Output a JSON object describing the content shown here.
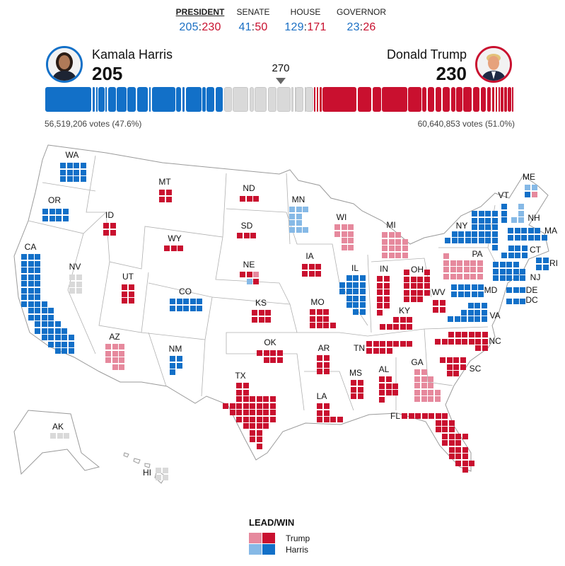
{
  "colors": {
    "harris-win": "#1270c8",
    "harris-lead": "#86b9e6",
    "trump-win": "#c9102f",
    "trump-lead": "#e6899d",
    "undecided": "#d9d9d9"
  },
  "tabs": [
    {
      "label": "PRESIDENT",
      "dem": "205",
      "rep": "230",
      "active": true
    },
    {
      "label": "SENATE",
      "dem": "41",
      "rep": "50"
    },
    {
      "label": "HOUSE",
      "dem": "129",
      "rep": "171"
    },
    {
      "label": "GOVERNOR",
      "dem": "23",
      "rep": "26"
    }
  ],
  "score_separator": ":",
  "harris": {
    "name": "Kamala Harris",
    "electoral_votes": "205",
    "votes": "56,519,206 votes (47.6%)",
    "color": "#1270c8"
  },
  "trump": {
    "name": "Donald Trump",
    "electoral_votes": "230",
    "votes": "60,640,853 votes (51.0%)",
    "color": "#c9102f"
  },
  "threshold": "270",
  "bar_segments": {
    "harris": [
      54,
      4,
      3,
      8,
      3,
      10,
      12,
      11,
      14,
      3,
      28,
      7,
      4,
      19,
      5,
      10,
      10
    ],
    "undecided": [
      10,
      19,
      6,
      15,
      11,
      16,
      4,
      1,
      10,
      1,
      10
    ],
    "trump": [
      3,
      3,
      4,
      40,
      17,
      11,
      30,
      16,
      6,
      9,
      8,
      10,
      6,
      8,
      11,
      9,
      7,
      6,
      4,
      3,
      3,
      4,
      4,
      5,
      3
    ]
  },
  "states": [
    {
      "abbr": "WA",
      "ev": 12,
      "status": "harris-win"
    },
    {
      "abbr": "OR",
      "ev": 8,
      "status": "harris-win"
    },
    {
      "abbr": "CA",
      "ev": 54,
      "status": "harris-win"
    },
    {
      "abbr": "NV",
      "ev": 6,
      "status": "undecided"
    },
    {
      "abbr": "ID",
      "ev": 4,
      "status": "trump-win"
    },
    {
      "abbr": "MT",
      "ev": 4,
      "status": "trump-win"
    },
    {
      "abbr": "WY",
      "ev": 3,
      "status": "trump-win"
    },
    {
      "abbr": "UT",
      "ev": 6,
      "status": "trump-win"
    },
    {
      "abbr": "CO",
      "ev": 10,
      "status": "harris-win"
    },
    {
      "abbr": "AZ",
      "ev": 11,
      "status": "trump-lead"
    },
    {
      "abbr": "NM",
      "ev": 5,
      "status": "harris-win"
    },
    {
      "abbr": "ND",
      "ev": 3,
      "status": "trump-win"
    },
    {
      "abbr": "SD",
      "ev": 3,
      "status": "trump-win"
    },
    {
      "abbr": "NE",
      "ev": 5,
      "tiles": [
        "trump-win",
        "trump-win",
        "trump-lead",
        "harris-lead",
        "trump-win"
      ]
    },
    {
      "abbr": "KS",
      "ev": 6,
      "status": "trump-win"
    },
    {
      "abbr": "OK",
      "ev": 7,
      "status": "trump-win"
    },
    {
      "abbr": "TX",
      "ev": 40,
      "status": "trump-win"
    },
    {
      "abbr": "MN",
      "ev": 10,
      "status": "harris-lead"
    },
    {
      "abbr": "IA",
      "ev": 6,
      "status": "trump-win"
    },
    {
      "abbr": "MO",
      "ev": 10,
      "status": "trump-win"
    },
    {
      "abbr": "AR",
      "ev": 6,
      "status": "trump-win"
    },
    {
      "abbr": "LA",
      "ev": 8,
      "status": "trump-win"
    },
    {
      "abbr": "WI",
      "ev": 10,
      "status": "trump-lead"
    },
    {
      "abbr": "IL",
      "ev": 19,
      "status": "harris-win"
    },
    {
      "abbr": "MI",
      "ev": 15,
      "status": "trump-lead"
    },
    {
      "abbr": "IN",
      "ev": 11,
      "status": "trump-win"
    },
    {
      "abbr": "OH",
      "ev": 17,
      "status": "trump-win"
    },
    {
      "abbr": "KY",
      "ev": 8,
      "status": "trump-win"
    },
    {
      "abbr": "TN",
      "ev": 11,
      "status": "trump-win"
    },
    {
      "abbr": "MS",
      "ev": 6,
      "status": "trump-win"
    },
    {
      "abbr": "AL",
      "ev": 9,
      "status": "trump-win"
    },
    {
      "abbr": "GA",
      "ev": 16,
      "status": "trump-lead"
    },
    {
      "abbr": "FL",
      "ev": 30,
      "status": "trump-win"
    },
    {
      "abbr": "SC",
      "ev": 9,
      "status": "trump-win"
    },
    {
      "abbr": "NC",
      "ev": 16,
      "status": "trump-win"
    },
    {
      "abbr": "VA",
      "ev": 13,
      "status": "harris-win"
    },
    {
      "abbr": "WV",
      "ev": 4,
      "status": "trump-win"
    },
    {
      "abbr": "MD",
      "ev": 10,
      "status": "harris-win"
    },
    {
      "abbr": "PA",
      "ev": 19,
      "status": "trump-lead"
    },
    {
      "abbr": "NY",
      "ev": 28,
      "status": "harris-win"
    },
    {
      "abbr": "VT",
      "ev": 3,
      "status": "harris-win"
    },
    {
      "abbr": "NH",
      "ev": 4,
      "status": "harris-lead"
    },
    {
      "abbr": "ME",
      "ev": 4,
      "tiles": [
        "harris-lead",
        "harris-lead",
        "harris-win",
        "trump-lead"
      ]
    },
    {
      "abbr": "MA",
      "ev": 11,
      "status": "harris-win"
    },
    {
      "abbr": "CT",
      "ev": 7,
      "status": "harris-win"
    },
    {
      "abbr": "RI",
      "ev": 4,
      "status": "harris-win"
    },
    {
      "abbr": "NJ",
      "ev": 14,
      "status": "harris-win"
    },
    {
      "abbr": "DE",
      "ev": 3,
      "status": "harris-win"
    },
    {
      "abbr": "DC",
      "ev": 3,
      "status": "harris-win"
    },
    {
      "abbr": "AK",
      "ev": 3,
      "status": "undecided"
    },
    {
      "abbr": "HI",
      "ev": 4,
      "status": "undecided"
    }
  ],
  "legend": {
    "title": "LEAD/WIN",
    "items": [
      {
        "label": "Trump",
        "lead": "trump-lead",
        "win": "trump-win"
      },
      {
        "label": "Harris",
        "lead": "harris-lead",
        "win": "harris-win"
      }
    ]
  }
}
